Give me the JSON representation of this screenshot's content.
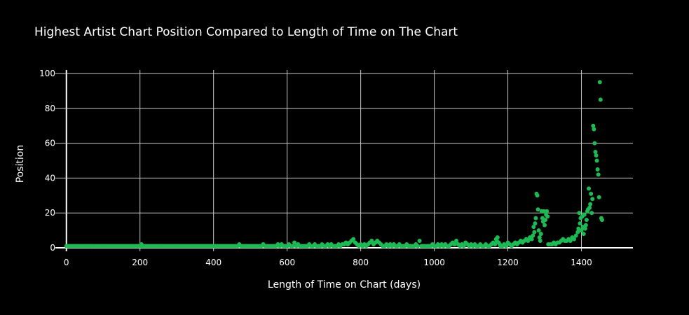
{
  "chart_data": {
    "type": "scatter",
    "title": "Highest Artist Chart Position Compared to Length of Time on The Chart",
    "xlabel": "Length of Time on Chart (days)",
    "ylabel": "Position",
    "xlim": [
      -30,
      1540
    ],
    "ylim": [
      -2,
      102
    ],
    "x_ticks": [
      0,
      200,
      400,
      600,
      800,
      1000,
      1200,
      1400
    ],
    "y_ticks": [
      0,
      20,
      40,
      60,
      80,
      100
    ],
    "grid": true,
    "legend": "none",
    "series": [
      {
        "color": "#1db954",
        "points": [
          [
            0,
            1
          ],
          [
            5,
            1
          ],
          [
            10,
            1
          ],
          [
            15,
            1
          ],
          [
            20,
            1
          ],
          [
            25,
            1
          ],
          [
            30,
            1
          ],
          [
            35,
            1
          ],
          [
            40,
            1
          ],
          [
            45,
            1
          ],
          [
            50,
            1
          ],
          [
            55,
            1
          ],
          [
            60,
            1
          ],
          [
            65,
            1
          ],
          [
            70,
            1
          ],
          [
            75,
            1
          ],
          [
            80,
            1
          ],
          [
            85,
            1
          ],
          [
            90,
            1
          ],
          [
            95,
            1
          ],
          [
            100,
            1
          ],
          [
            105,
            1
          ],
          [
            110,
            1
          ],
          [
            115,
            1
          ],
          [
            120,
            1
          ],
          [
            125,
            1
          ],
          [
            130,
            1
          ],
          [
            135,
            1
          ],
          [
            140,
            1
          ],
          [
            145,
            1
          ],
          [
            150,
            1
          ],
          [
            155,
            1
          ],
          [
            160,
            1
          ],
          [
            165,
            1
          ],
          [
            170,
            1
          ],
          [
            175,
            1
          ],
          [
            180,
            1
          ],
          [
            185,
            1
          ],
          [
            190,
            1
          ],
          [
            195,
            1
          ],
          [
            200,
            1
          ],
          [
            204,
            2
          ],
          [
            205,
            1
          ],
          [
            210,
            1
          ],
          [
            215,
            1
          ],
          [
            220,
            1
          ],
          [
            225,
            1
          ],
          [
            230,
            1
          ],
          [
            235,
            1
          ],
          [
            240,
            1
          ],
          [
            245,
            1
          ],
          [
            250,
            1
          ],
          [
            255,
            1
          ],
          [
            260,
            1
          ],
          [
            265,
            1
          ],
          [
            270,
            1
          ],
          [
            275,
            1
          ],
          [
            280,
            1
          ],
          [
            285,
            1
          ],
          [
            290,
            1
          ],
          [
            295,
            1
          ],
          [
            300,
            1
          ],
          [
            305,
            1
          ],
          [
            310,
            1
          ],
          [
            315,
            1
          ],
          [
            320,
            1
          ],
          [
            325,
            1
          ],
          [
            330,
            1
          ],
          [
            335,
            1
          ],
          [
            340,
            1
          ],
          [
            345,
            1
          ],
          [
            350,
            1
          ],
          [
            355,
            1
          ],
          [
            360,
            1
          ],
          [
            365,
            1
          ],
          [
            370,
            1
          ],
          [
            375,
            1
          ],
          [
            380,
            1
          ],
          [
            385,
            1
          ],
          [
            390,
            1
          ],
          [
            395,
            1
          ],
          [
            400,
            1
          ],
          [
            405,
            1
          ],
          [
            410,
            1
          ],
          [
            415,
            1
          ],
          [
            420,
            1
          ],
          [
            425,
            1
          ],
          [
            430,
            1
          ],
          [
            435,
            1
          ],
          [
            440,
            1
          ],
          [
            445,
            1
          ],
          [
            450,
            1
          ],
          [
            455,
            1
          ],
          [
            460,
            1
          ],
          [
            465,
            1
          ],
          [
            470,
            2
          ],
          [
            475,
            1
          ],
          [
            480,
            1
          ],
          [
            485,
            1
          ],
          [
            490,
            1
          ],
          [
            495,
            1
          ],
          [
            500,
            1
          ],
          [
            505,
            1
          ],
          [
            510,
            1
          ],
          [
            515,
            1
          ],
          [
            520,
            1
          ],
          [
            525,
            1
          ],
          [
            530,
            1
          ],
          [
            535,
            2
          ],
          [
            540,
            1
          ],
          [
            545,
            1
          ],
          [
            550,
            1
          ],
          [
            555,
            1
          ],
          [
            560,
            1
          ],
          [
            565,
            1
          ],
          [
            570,
            1
          ],
          [
            575,
            2
          ],
          [
            580,
            1
          ],
          [
            585,
            2
          ],
          [
            590,
            1
          ],
          [
            595,
            1
          ],
          [
            600,
            1
          ],
          [
            605,
            2
          ],
          [
            610,
            1
          ],
          [
            615,
            1
          ],
          [
            620,
            3
          ],
          [
            625,
            1
          ],
          [
            630,
            2
          ],
          [
            635,
            1
          ],
          [
            640,
            1
          ],
          [
            645,
            1
          ],
          [
            650,
            1
          ],
          [
            655,
            1
          ],
          [
            660,
            2
          ],
          [
            665,
            1
          ],
          [
            670,
            1
          ],
          [
            675,
            2
          ],
          [
            680,
            1
          ],
          [
            685,
            1
          ],
          [
            690,
            1
          ],
          [
            695,
            2
          ],
          [
            700,
            1
          ],
          [
            705,
            1
          ],
          [
            710,
            2
          ],
          [
            715,
            1
          ],
          [
            720,
            2
          ],
          [
            725,
            1
          ],
          [
            730,
            1
          ],
          [
            735,
            1
          ],
          [
            740,
            2
          ],
          [
            745,
            1
          ],
          [
            750,
            2
          ],
          [
            755,
            2
          ],
          [
            760,
            3
          ],
          [
            765,
            2
          ],
          [
            770,
            3
          ],
          [
            775,
            4
          ],
          [
            780,
            5
          ],
          [
            785,
            3
          ],
          [
            790,
            2
          ],
          [
            795,
            1
          ],
          [
            800,
            2
          ],
          [
            805,
            1
          ],
          [
            810,
            2
          ],
          [
            815,
            1
          ],
          [
            820,
            2
          ],
          [
            825,
            3
          ],
          [
            830,
            4
          ],
          [
            835,
            2
          ],
          [
            840,
            3
          ],
          [
            845,
            4
          ],
          [
            850,
            3
          ],
          [
            855,
            2
          ],
          [
            860,
            1
          ],
          [
            865,
            1
          ],
          [
            870,
            2
          ],
          [
            875,
            1
          ],
          [
            880,
            2
          ],
          [
            885,
            1
          ],
          [
            890,
            2
          ],
          [
            895,
            1
          ],
          [
            900,
            1
          ],
          [
            905,
            2
          ],
          [
            910,
            1
          ],
          [
            915,
            1
          ],
          [
            920,
            1
          ],
          [
            925,
            2
          ],
          [
            930,
            1
          ],
          [
            935,
            1
          ],
          [
            940,
            1
          ],
          [
            945,
            1
          ],
          [
            950,
            2
          ],
          [
            955,
            1
          ],
          [
            960,
            4
          ],
          [
            965,
            1
          ],
          [
            970,
            1
          ],
          [
            975,
            1
          ],
          [
            980,
            1
          ],
          [
            985,
            1
          ],
          [
            990,
            1
          ],
          [
            995,
            2
          ],
          [
            1000,
            1
          ],
          [
            1005,
            1
          ],
          [
            1010,
            2
          ],
          [
            1015,
            1
          ],
          [
            1020,
            2
          ],
          [
            1025,
            1
          ],
          [
            1030,
            2
          ],
          [
            1035,
            1
          ],
          [
            1040,
            1
          ],
          [
            1045,
            2
          ],
          [
            1050,
            3
          ],
          [
            1055,
            2
          ],
          [
            1060,
            4
          ],
          [
            1065,
            2
          ],
          [
            1070,
            1
          ],
          [
            1075,
            2
          ],
          [
            1080,
            1
          ],
          [
            1085,
            3
          ],
          [
            1090,
            2
          ],
          [
            1095,
            1
          ],
          [
            1100,
            2
          ],
          [
            1105,
            1
          ],
          [
            1110,
            2
          ],
          [
            1115,
            1
          ],
          [
            1120,
            1
          ],
          [
            1125,
            2
          ],
          [
            1130,
            1
          ],
          [
            1135,
            1
          ],
          [
            1140,
            2
          ],
          [
            1145,
            1
          ],
          [
            1150,
            1
          ],
          [
            1155,
            2
          ],
          [
            1160,
            3
          ],
          [
            1165,
            2
          ],
          [
            1168,
            5
          ],
          [
            1170,
            4
          ],
          [
            1172,
            6
          ],
          [
            1175,
            3
          ],
          [
            1178,
            2
          ],
          [
            1180,
            1
          ],
          [
            1185,
            1
          ],
          [
            1190,
            2
          ],
          [
            1195,
            1
          ],
          [
            1200,
            3
          ],
          [
            1205,
            2
          ],
          [
            1210,
            1
          ],
          [
            1215,
            2
          ],
          [
            1220,
            3
          ],
          [
            1225,
            2
          ],
          [
            1230,
            3
          ],
          [
            1235,
            4
          ],
          [
            1240,
            3
          ],
          [
            1245,
            4
          ],
          [
            1250,
            5
          ],
          [
            1255,
            4
          ],
          [
            1260,
            6
          ],
          [
            1265,
            5
          ],
          [
            1268,
            7
          ],
          [
            1270,
            12
          ],
          [
            1272,
            9
          ],
          [
            1274,
            14
          ],
          [
            1276,
            17
          ],
          [
            1278,
            31
          ],
          [
            1280,
            30
          ],
          [
            1282,
            22
          ],
          [
            1284,
            10
          ],
          [
            1286,
            6
          ],
          [
            1288,
            4
          ],
          [
            1290,
            8
          ],
          [
            1292,
            21
          ],
          [
            1294,
            17
          ],
          [
            1296,
            15
          ],
          [
            1298,
            21
          ],
          [
            1300,
            13
          ],
          [
            1302,
            16
          ],
          [
            1304,
            19
          ],
          [
            1306,
            21
          ],
          [
            1308,
            18
          ],
          [
            1310,
            2
          ],
          [
            1315,
            2
          ],
          [
            1320,
            2
          ],
          [
            1325,
            3
          ],
          [
            1330,
            2
          ],
          [
            1335,
            3
          ],
          [
            1340,
            3
          ],
          [
            1345,
            4
          ],
          [
            1350,
            5
          ],
          [
            1355,
            4
          ],
          [
            1360,
            4
          ],
          [
            1365,
            5
          ],
          [
            1370,
            4
          ],
          [
            1375,
            6
          ],
          [
            1380,
            5
          ],
          [
            1385,
            7
          ],
          [
            1390,
            9
          ],
          [
            1392,
            11
          ],
          [
            1394,
            20
          ],
          [
            1396,
            14
          ],
          [
            1398,
            17
          ],
          [
            1400,
            10
          ],
          [
            1402,
            18
          ],
          [
            1404,
            12
          ],
          [
            1406,
            8
          ],
          [
            1408,
            19
          ],
          [
            1410,
            11
          ],
          [
            1412,
            13
          ],
          [
            1414,
            16
          ],
          [
            1416,
            21
          ],
          [
            1418,
            22
          ],
          [
            1420,
            34
          ],
          [
            1422,
            23
          ],
          [
            1424,
            25
          ],
          [
            1426,
            31
          ],
          [
            1428,
            20
          ],
          [
            1430,
            28
          ],
          [
            1432,
            70
          ],
          [
            1434,
            68
          ],
          [
            1436,
            60
          ],
          [
            1438,
            55
          ],
          [
            1440,
            53
          ],
          [
            1442,
            50
          ],
          [
            1444,
            45
          ],
          [
            1446,
            42
          ],
          [
            1448,
            29
          ],
          [
            1450,
            95
          ],
          [
            1452,
            85
          ],
          [
            1454,
            17
          ],
          [
            1456,
            16
          ]
        ]
      }
    ]
  }
}
